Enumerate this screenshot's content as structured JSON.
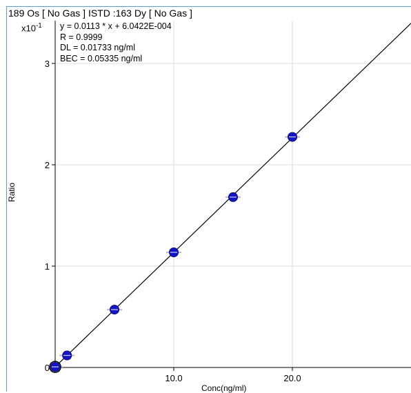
{
  "chart_data": {
    "type": "scatter",
    "title": "189  Os  [ No Gas ]  ISTD :163  Dy  [ No Gas ]",
    "multiplier": "x10",
    "multiplier_exp": "-1",
    "ylabel": "Ratio",
    "xlabel": "Conc(ng/ml)",
    "equation": "y = 0.0113 * x  + 6.0422E-004",
    "r_value": "R =  0.9999",
    "dl": "DL = 0.01733 ng/ml",
    "bec": "BEC = 0.05335 ng/ml",
    "xlim": [
      0,
      30
    ],
    "ylim": [
      0,
      3.35
    ],
    "x_ticks": [
      {
        "value": 10,
        "label": "10.0"
      },
      {
        "value": 20,
        "label": "20.0"
      }
    ],
    "y_ticks": [
      {
        "value": 0,
        "label": "0"
      },
      {
        "value": 1,
        "label": "1"
      },
      {
        "value": 2,
        "label": "2"
      },
      {
        "value": 3,
        "label": "3"
      }
    ],
    "grid": true,
    "points": [
      {
        "x": 0,
        "y": 0.006
      },
      {
        "x": 1,
        "y": 0.119
      },
      {
        "x": 5,
        "y": 0.571
      },
      {
        "x": 10,
        "y": 1.136
      },
      {
        "x": 15,
        "y": 1.681
      },
      {
        "x": 20,
        "y": 2.275
      }
    ],
    "fit": {
      "slope": 0.113,
      "intercept": 0.006
    },
    "colors": {
      "point": "#1515c8",
      "line": "#000000",
      "grid": "#dddddd",
      "border": "#5aa0d8"
    }
  }
}
